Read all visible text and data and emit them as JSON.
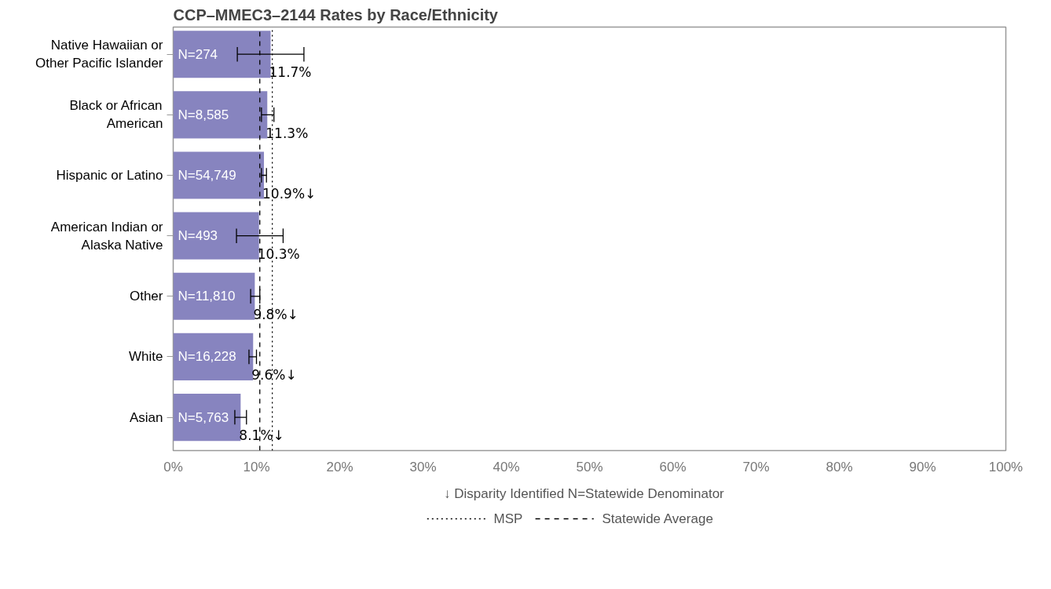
{
  "chart_data": {
    "type": "bar",
    "orientation": "horizontal",
    "title": "CCP–MMEC3–2144 Rates by Race/Ethnicity",
    "categories": [
      "Native Hawaiian or\nOther Pacific Islander",
      "Black or African\nAmerican",
      "Hispanic or Latino",
      "American Indian or\nAlaska Native",
      "Other",
      "White",
      "Asian"
    ],
    "values": [
      11.7,
      11.3,
      10.9,
      10.3,
      9.8,
      9.6,
      8.1
    ],
    "color": "#8784bf",
    "errors": [
      [
        7.7,
        15.7
      ],
      [
        10.6,
        12.1
      ],
      [
        10.6,
        11.2
      ],
      [
        7.6,
        13.2
      ],
      [
        9.3,
        10.4
      ],
      [
        9.1,
        10.0
      ],
      [
        7.4,
        8.8
      ]
    ],
    "value_labels": [
      "11.7%",
      "11.3%",
      "10.9%↓",
      "10.3%",
      "9.8%↓",
      "9.6%↓",
      "8.1%↓"
    ],
    "xlim": [
      0,
      100
    ],
    "xticks": [
      {
        "value": 0,
        "label": "0%"
      },
      {
        "value": 10,
        "label": "10%"
      },
      {
        "value": 20,
        "label": "20%"
      },
      {
        "value": 30,
        "label": "30%"
      },
      {
        "value": 40,
        "label": "40%"
      },
      {
        "value": 50,
        "label": "50%"
      },
      {
        "value": 60,
        "label": "60%"
      },
      {
        "value": 70,
        "label": "70%"
      },
      {
        "value": 80,
        "label": "80%"
      },
      {
        "value": 90,
        "label": "90%"
      },
      {
        "value": 100,
        "label": "100%"
      }
    ],
    "ref_lines": [
      {
        "axis": "x",
        "value": 11.9,
        "label": "MSP",
        "line_style": "dotted",
        "color": "#000000"
      },
      {
        "axis": "x",
        "value": 10.4,
        "label": "Statewide Average",
        "line_style": "dashed",
        "color": "#000000"
      }
    ],
    "annotations": [
      {
        "text": "N=274",
        "y": "Native Hawaiian or\nOther Pacific Islander"
      },
      {
        "text": "N=8,585",
        "y": "Black or African\nAmerican"
      },
      {
        "text": "N=54,749",
        "y": "Hispanic or Latino"
      },
      {
        "text": "N=493",
        "y": "American Indian or\nAlaska Native"
      },
      {
        "text": "N=11,810",
        "y": "Other"
      },
      {
        "text": "N=16,228",
        "y": "White"
      },
      {
        "text": "N=5,763",
        "y": "Asian"
      },
      "↓ Disparity Identified    N=Statewide Denominator"
    ],
    "legend": "bottom",
    "grid": false
  }
}
